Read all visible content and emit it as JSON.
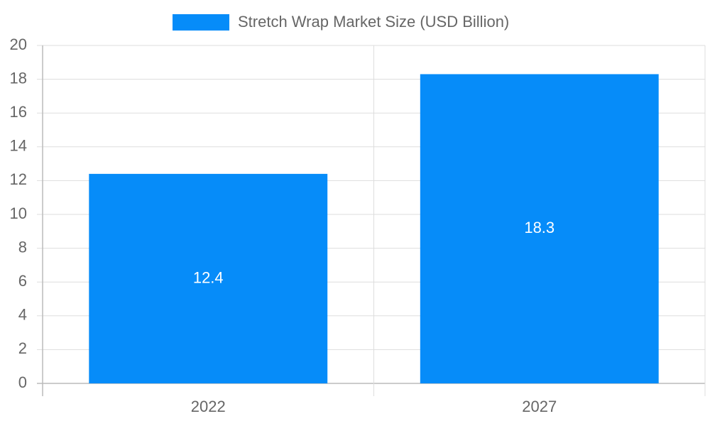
{
  "chart_data": {
    "type": "bar",
    "categories": [
      "2022",
      "2027"
    ],
    "series": [
      {
        "name": "Stretch Wrap Market Size (USD Billion)",
        "color": "#068cf9",
        "values": [
          12.4,
          18.3
        ]
      }
    ],
    "ylim": [
      0,
      20
    ],
    "yticks": [
      0,
      2,
      4,
      6,
      8,
      10,
      12,
      14,
      16,
      18,
      20
    ],
    "grid": true,
    "legend": "top"
  }
}
